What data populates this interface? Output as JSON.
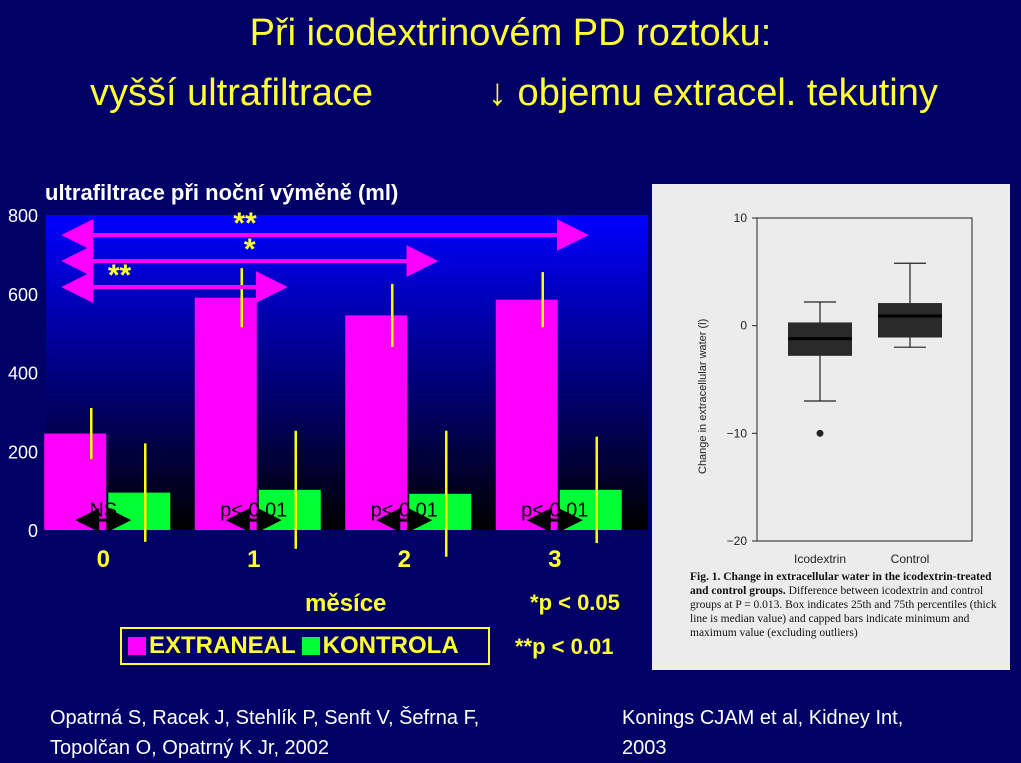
{
  "title": {
    "line1": "Při icodextrinovém PD roztoku:",
    "line2_left": "vyšší ultrafiltrace",
    "line2_right": "↓ objemu extracel. tekutiny"
  },
  "chart_data": [
    {
      "type": "bar",
      "title": "ultrafiltrace při noční výměně (ml)",
      "xlabel": "měsíce",
      "categories": [
        "0",
        "1",
        "2",
        "3"
      ],
      "ylim": [
        0,
        800
      ],
      "yticks": [
        0,
        200,
        400,
        600,
        800
      ],
      "ytick_labels": [
        "0",
        "200",
        "400",
        "600",
        "800"
      ],
      "series": [
        {
          "name": "EXTRANEAL",
          "color": "#ff00ff",
          "values": [
            245,
            590,
            545,
            585
          ],
          "error": [
            65,
            75,
            80,
            70
          ]
        },
        {
          "name": "KONTROLA",
          "color": "#00ff33",
          "values": [
            95,
            102,
            92,
            102
          ],
          "error": [
            125,
            150,
            160,
            135
          ]
        }
      ],
      "within_group_labels": [
        "NS",
        "p< 0,01",
        "p< 0,01",
        "p< 0,01"
      ],
      "comparisons": [
        {
          "from": "0",
          "to": "1",
          "mark": "**"
        },
        {
          "from": "0",
          "to": "2",
          "mark": "*"
        },
        {
          "from": "0",
          "to": "3",
          "mark": "**"
        }
      ],
      "significance_legend": [
        {
          "mark": "*",
          "text": "p < 0.05"
        },
        {
          "mark": "**",
          "text": "p < 0.01"
        }
      ],
      "grid": false,
      "legend_position": "bottom-left",
      "colors": {
        "background_top": "#0000ff",
        "background_bottom": "#000000",
        "text_accent": "#ffff33",
        "arrow": "#ff00ff"
      }
    },
    {
      "type": "boxplot",
      "ylabel": "Change in extracellular water (l)",
      "categories": [
        "Icodextrin",
        "Control"
      ],
      "ylim": [
        -20,
        10
      ],
      "yticks": [
        -20,
        -10,
        0,
        10
      ],
      "ytick_labels": [
        "−20",
        "−10",
        "0",
        "10"
      ],
      "boxes": [
        {
          "name": "Icodextrin",
          "min": -7,
          "q1": -2.8,
          "median": -1.2,
          "q3": 0.3,
          "max": 2.2,
          "outliers": [
            -10
          ]
        },
        {
          "name": "Control",
          "min": -2,
          "q1": -1.1,
          "median": 0.9,
          "q3": 2.1,
          "max": 5.8,
          "outliers": []
        }
      ],
      "caption_bold": "Fig. 1. Change in extracellular water in the icodextrin-treated and control groups.",
      "caption_text": " Difference between icodextrin and control groups at P = 0.013. Box indicates 25th and 75th percentiles (thick line is median value) and capped bars indicate minimum and maximum value (excluding outliers)"
    }
  ],
  "footer": {
    "citation_left": "Opatrná S, Racek J, Stehlík P, Senft V, Šefrna F, Topolčan O, Opatrný K Jr, 2002",
    "citation_right": "Konings CJAM et al, Kidney Int, 2003"
  }
}
